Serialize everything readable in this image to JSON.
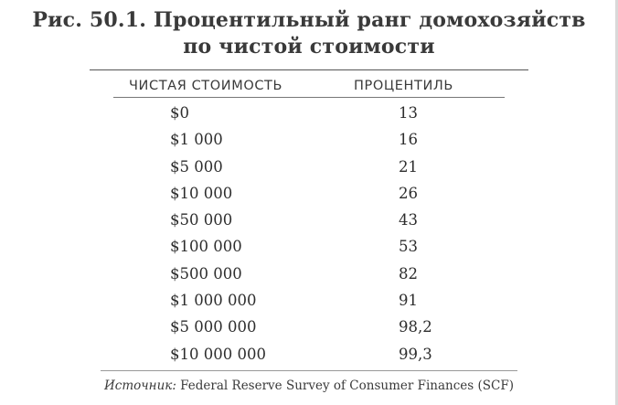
{
  "title": {
    "line1": "Рис. 50.1. Процентильный ранг домохозяйств",
    "line2": "по чистой стоимости"
  },
  "table": {
    "headers": {
      "net_worth": "ЧИСТАЯ СТОИМОСТЬ",
      "percentile": "ПРОЦЕНТИЛЬ"
    },
    "rows": [
      {
        "net_worth": "$0",
        "percentile": "13"
      },
      {
        "net_worth": "$1 000",
        "percentile": "16"
      },
      {
        "net_worth": "$5 000",
        "percentile": "21"
      },
      {
        "net_worth": "$10 000",
        "percentile": "26"
      },
      {
        "net_worth": "$50 000",
        "percentile": "43"
      },
      {
        "net_worth": "$100 000",
        "percentile": "53"
      },
      {
        "net_worth": "$500 000",
        "percentile": "82"
      },
      {
        "net_worth": "$1 000 000",
        "percentile": "91"
      },
      {
        "net_worth": "$5 000 000",
        "percentile": "98,2"
      },
      {
        "net_worth": "$10 000 000",
        "percentile": "99,3"
      }
    ]
  },
  "source": {
    "label": "Источник:",
    "text": " Federal Reserve Survey of Consumer Finances (SCF)"
  }
}
